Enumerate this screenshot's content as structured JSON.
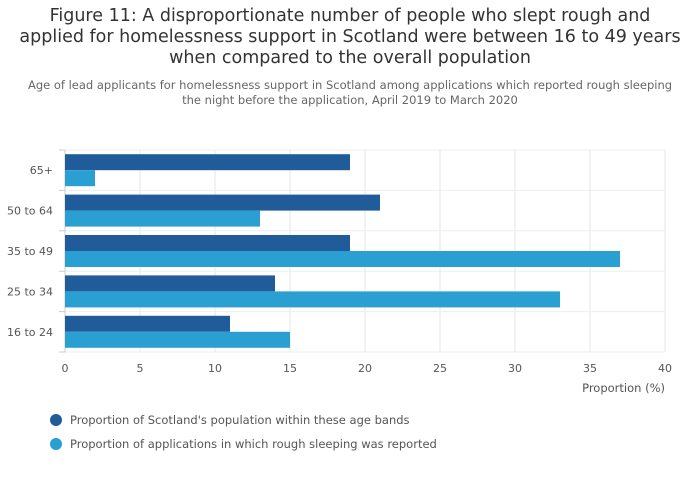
{
  "title": {
    "line1": "Figure 11: A disproportionate number of people who slept rough and",
    "line2": "applied for homelessness support in Scotland were between 16 to 49 years",
    "line3": "when compared to the overall population"
  },
  "subtitle": {
    "line1": "Age of lead applicants for homelessness support in Scotland among applications which reported rough sleeping",
    "line2": "the night before the application, April 2019 to March 2020"
  },
  "colors": {
    "population": "#1f5c99",
    "applications": "#2aa0d2"
  },
  "chart_data": {
    "type": "bar",
    "orientation": "horizontal",
    "categories": [
      "65+",
      "50 to 64",
      "35 to 49",
      "25 to 34",
      "16 to 24"
    ],
    "series": [
      {
        "name": "Proportion of Scotland's population within these age bands",
        "values": [
          19,
          21,
          19,
          14,
          11
        ]
      },
      {
        "name": "Proportion of applications in which rough sleeping was reported",
        "values": [
          2,
          13,
          37,
          33,
          15
        ]
      }
    ],
    "xlabel": "Proportion (%)",
    "ylabel": "",
    "xlim": [
      0,
      40
    ],
    "xticks": [
      "0",
      "5",
      "10",
      "15",
      "20",
      "25",
      "30",
      "35",
      "40"
    ],
    "grid": true,
    "legend": "bottom-left"
  }
}
